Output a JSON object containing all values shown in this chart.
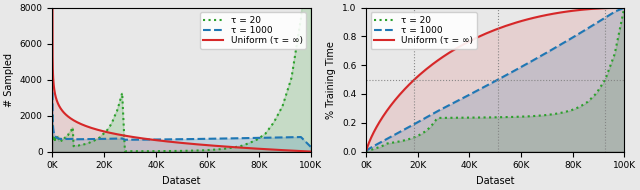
{
  "N": 100000,
  "colors": {
    "tau20": "#2ca02c",
    "tau1000": "#1f77b4",
    "uniform": "#d62728"
  },
  "left_ylabel": "# Sampled",
  "right_ylabel": "% Training Time",
  "xlabel": "Dataset",
  "legend_labels": [
    "τ = 20",
    "τ = 1000",
    "Uniform (τ = ∞)"
  ],
  "left_ylim": [
    0,
    8000
  ],
  "right_ylim": [
    0,
    1.0
  ],
  "right_yticks": [
    0.0,
    0.2,
    0.4,
    0.6,
    0.8,
    1.0
  ],
  "xtick_labels": [
    "0K",
    "20K",
    "40K",
    "60K",
    "80K",
    "100K"
  ],
  "xtick_positions": [
    0,
    20000,
    40000,
    60000,
    80000,
    100000
  ],
  "bg_color": "#e8e8e8",
  "tau_vals": [
    20,
    1000
  ]
}
